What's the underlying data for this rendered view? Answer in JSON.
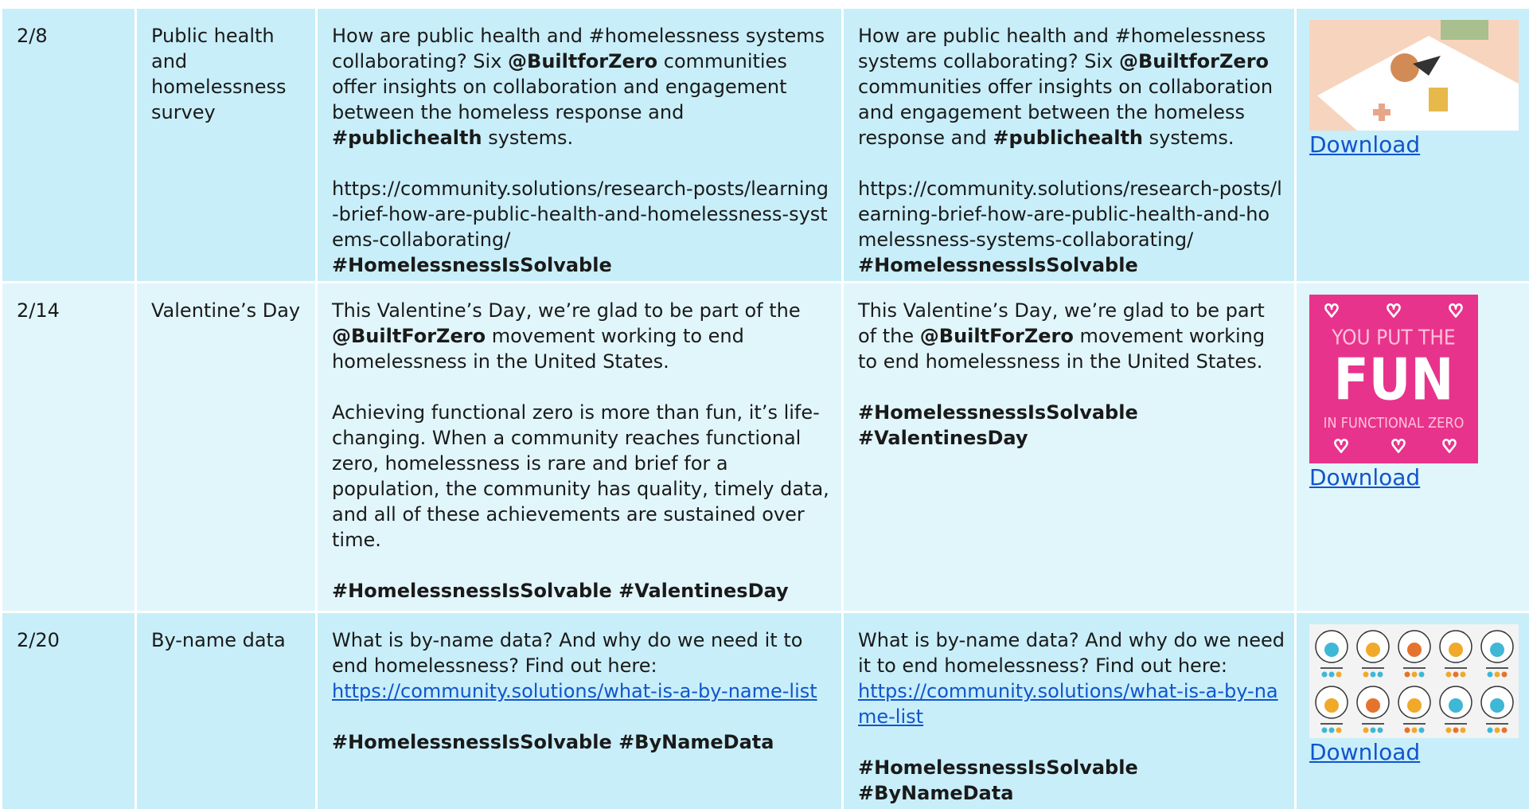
{
  "rows": [
    {
      "date": "2/8",
      "topic": "Public health and homelessness survey",
      "post_a": [
        [
          [
            {
              "text": "How are public health and #homelessness systems collaborating? Six "
            },
            {
              "text": "@BuiltforZero",
              "bold": true
            },
            {
              "text": " communities offer insights on collaboration and engagement between the homeless response and "
            },
            {
              "text": "#publichealth",
              "bold": true
            },
            {
              "text": " systems."
            }
          ]
        ],
        [
          [
            {
              "text": "https://community.solutions/research-posts/learning-brief-how-are-public-health-and-homelessness-systems-collaborating/"
            }
          ],
          [
            {
              "text": "#HomelessnessIsSolvable",
              "bold": true
            }
          ]
        ]
      ],
      "post_b": [
        [
          [
            {
              "text": "How are public health and #homelessness systems collaborating? Six "
            },
            {
              "text": "@BuiltforZero",
              "bold": true
            },
            {
              "text": " communities offer insights on collaboration and engagement between the homeless response and "
            },
            {
              "text": "#publichealth",
              "bold": true
            },
            {
              "text": " systems."
            }
          ]
        ],
        [
          [
            {
              "text": "https://community.solutions/research-posts/learning-brief-how-are-public-health-and-homelessness-systems-collaborating/"
            }
          ],
          [
            {
              "text": "#HomelessnessIsSolvable",
              "bold": true
            }
          ]
        ]
      ],
      "image": {
        "kind": "illustration"
      },
      "download": "Download"
    },
    {
      "date": "2/14",
      "topic": "Valentine’s Day",
      "post_a": [
        [
          [
            {
              "text": "This Valentine’s Day, we’re glad to be part of the "
            },
            {
              "text": "@BuiltForZero",
              "bold": true
            },
            {
              "text": " movement working to end homelessness in the United States."
            }
          ]
        ],
        [
          [
            {
              "text": "Achieving functional zero is more than fun, it’s life-changing. When a community reaches functional zero, homelessness is rare and brief for a population, the community has quality, timely data, and all of these achievements are sustained over time."
            }
          ]
        ],
        [
          [
            {
              "text": "#HomelessnessIsSolvable #ValentinesDay",
              "bold": true
            }
          ]
        ]
      ],
      "post_b": [
        [
          [
            {
              "text": "This Valentine’s Day, we’re glad to be part of the "
            },
            {
              "text": "@BuiltForZero",
              "bold": true
            },
            {
              "text": " movement working to end homelessness in the United States."
            }
          ]
        ],
        [
          [
            {
              "text": "#HomelessnessIsSolvable",
              "bold": true
            }
          ],
          [
            {
              "text": "#ValentinesDay",
              "bold": true
            }
          ]
        ]
      ],
      "image": {
        "kind": "card",
        "lines": [
          "YOU PUT THE",
          "FUN",
          "IN FUNCTIONAL ZERO"
        ]
      },
      "download": "Download"
    },
    {
      "date": "2/20",
      "topic": "By-name data",
      "post_a": [
        [
          [
            {
              "text": "What is by-name data? And why do we need it to end homelessness? Find out here:"
            }
          ],
          [
            {
              "text": "https://community.solutions/what-is-a-by-name-list",
              "link": true
            }
          ]
        ],
        [
          [
            {
              "text": "#HomelessnessIsSolvable #ByNameData",
              "bold": true
            }
          ]
        ]
      ],
      "post_b": [
        [
          [
            {
              "text": "What is by-name data? And why do we need it to end homelessness? Find out here:"
            }
          ],
          [
            {
              "text": "https://community.solutions/what-is-a-by-name-list",
              "link": true
            }
          ]
        ],
        [
          [
            {
              "text": "#HomelessnessIsSolvable #ByNameData",
              "bold": true
            }
          ]
        ]
      ],
      "image": {
        "kind": "icons"
      },
      "download": "Download"
    }
  ]
}
